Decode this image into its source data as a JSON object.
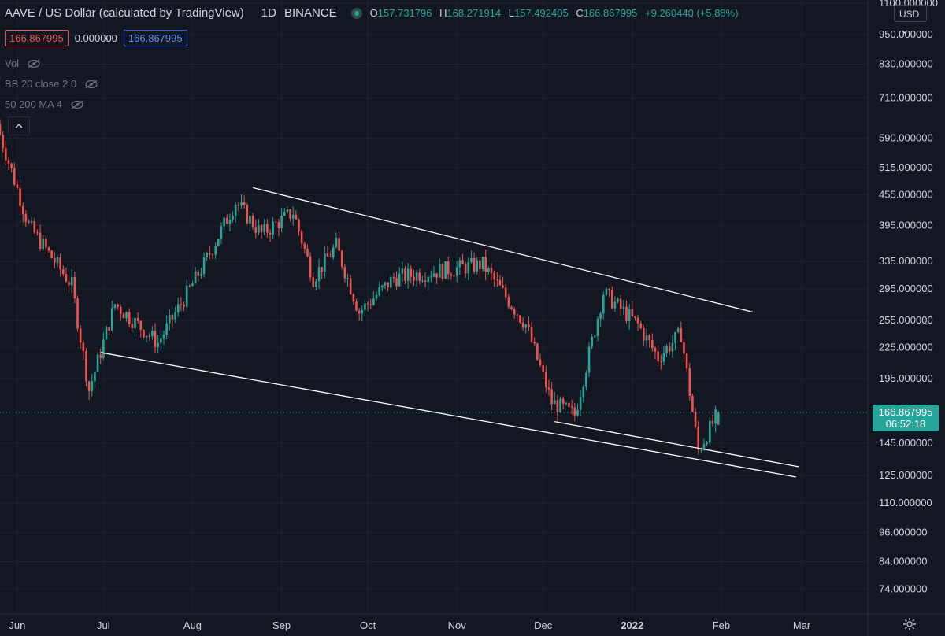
{
  "header": {
    "symbol_title": "AAVE / US Dollar (calculated by TradingView)",
    "interval": "1D",
    "exchange": "BINANCE",
    "ohlc": {
      "o_label": "O",
      "o": "157.731796",
      "h_label": "H",
      "h": "168.271914",
      "l_label": "L",
      "l": "157.492405",
      "c_label": "C",
      "c": "166.867995",
      "change": "+9.260440 (+5.88%)"
    },
    "bid": "166.867995",
    "spread": "0.000000",
    "ask": "166.867995"
  },
  "indicators": [
    {
      "label": "Vol"
    },
    {
      "label": "BB 20 close 2 0"
    },
    {
      "label": "50 200 MA 4"
    }
  ],
  "currency_button": "USD",
  "last_price": {
    "price": "166.867995",
    "countdown": "06:52:18"
  },
  "colors": {
    "background": "#131722",
    "up": "#26a69a",
    "down": "#ef5350",
    "grid": "#1e222d",
    "trendline": "#ffffff",
    "axis_text": "#d1d4dc"
  },
  "chart_data": {
    "type": "candlestick",
    "title": "AAVE / US Dollar (calculated by TradingView)",
    "y_scale": "log",
    "y_ticks": [
      1100,
      950,
      830,
      710,
      590,
      515,
      455,
      395,
      335,
      295,
      255,
      225,
      195,
      145,
      125,
      110,
      96,
      84,
      74
    ],
    "y_tick_labels": [
      "1100.000000",
      "950.000000",
      "830.000000",
      "710.000000",
      "590.000000",
      "515.000000",
      "455.000000",
      "395.000000",
      "335.000000",
      "295.000000",
      "255.000000",
      "225.000000",
      "195.000000",
      "145.000000",
      "125.000000",
      "110.000000",
      "96.000000",
      "84.000000",
      "74.000000"
    ],
    "x_tick_labels": [
      "Jun",
      "Jul",
      "Aug",
      "Sep",
      "Oct",
      "Nov",
      "Dec",
      "2022",
      "Feb",
      "Mar"
    ],
    "x_tick_dates": [
      "2021-06-01",
      "2021-07-01",
      "2021-08-01",
      "2021-09-01",
      "2021-10-01",
      "2021-11-01",
      "2021-12-01",
      "2022-01-01",
      "2022-02-01",
      "2022-03-01"
    ],
    "x_range": [
      "2021-05-26",
      "2022-03-24"
    ],
    "y_range": [
      66,
      1115
    ],
    "key_points": [
      {
        "date": "2021-05-26",
        "close": 600
      },
      {
        "date": "2021-06-05",
        "close": 395
      },
      {
        "date": "2021-06-20",
        "close": 300
      },
      {
        "date": "2021-06-26",
        "close": 185
      },
      {
        "date": "2021-07-05",
        "close": 275
      },
      {
        "date": "2021-07-20",
        "close": 230
      },
      {
        "date": "2021-08-05",
        "close": 330
      },
      {
        "date": "2021-08-16",
        "close": 440
      },
      {
        "date": "2021-08-25",
        "close": 380
      },
      {
        "date": "2021-09-05",
        "close": 420
      },
      {
        "date": "2021-09-12",
        "close": 310
      },
      {
        "date": "2021-09-20",
        "close": 360
      },
      {
        "date": "2021-09-28",
        "close": 265
      },
      {
        "date": "2021-10-10",
        "close": 310
      },
      {
        "date": "2021-10-25",
        "close": 320
      },
      {
        "date": "2021-11-10",
        "close": 330
      },
      {
        "date": "2021-11-25",
        "close": 250
      },
      {
        "date": "2021-12-04",
        "close": 175
      },
      {
        "date": "2021-12-12",
        "close": 165
      },
      {
        "date": "2021-12-22",
        "close": 290
      },
      {
        "date": "2022-01-03",
        "close": 250
      },
      {
        "date": "2022-01-10",
        "close": 215
      },
      {
        "date": "2022-01-18",
        "close": 240
      },
      {
        "date": "2022-01-24",
        "close": 140
      },
      {
        "date": "2022-01-31",
        "close": 166.87
      }
    ],
    "trendlines": [
      {
        "from": {
          "date": "2021-08-22",
          "price": 470
        },
        "to": {
          "date": "2022-02-12",
          "price": 265
        }
      },
      {
        "from": {
          "date": "2021-06-30",
          "price": 220
        },
        "to": {
          "date": "2022-02-27",
          "price": 124
        }
      },
      {
        "from": {
          "date": "2021-12-05",
          "price": 160
        },
        "to": {
          "date": "2022-02-28",
          "price": 130
        }
      }
    ]
  }
}
